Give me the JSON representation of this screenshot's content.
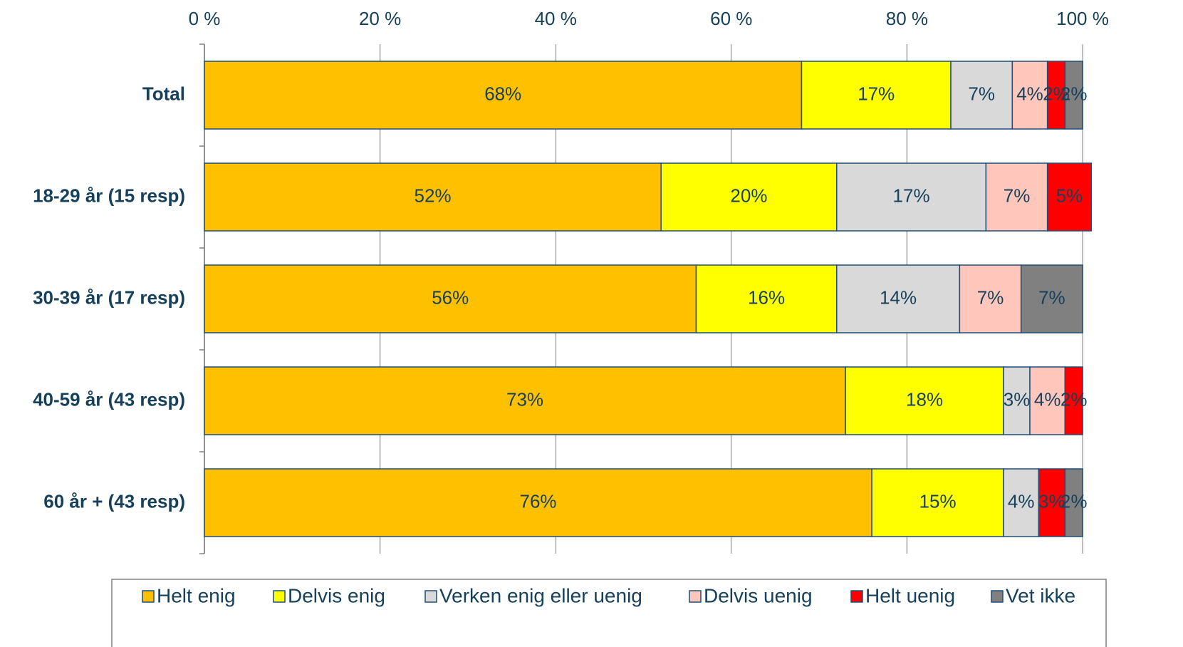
{
  "chart_data": {
    "type": "stacked-bar-horizontal",
    "categories": [
      "Total",
      "18-29 år (15 resp)",
      "30-39 år (17 resp)",
      "40-59 år (43 resp)",
      "60 år + (43 resp)"
    ],
    "series": [
      {
        "name": "Helt enig",
        "color": "#FFC000",
        "values": [
          68,
          52,
          56,
          73,
          76
        ],
        "value_labels": [
          "68%",
          "52%",
          "56%",
          "73%",
          "76%"
        ]
      },
      {
        "name": "Delvis enig",
        "color": "#FFFF00",
        "values": [
          17,
          20,
          16,
          18,
          15
        ],
        "value_labels": [
          "17%",
          "20%",
          "16%",
          "18%",
          "15%"
        ]
      },
      {
        "name": "Verken enig eller uenig",
        "color": "#D9D9D9",
        "values": [
          7,
          17,
          14,
          3,
          4
        ],
        "value_labels": [
          "7%",
          "17%",
          "14%",
          "3%",
          "4%"
        ]
      },
      {
        "name": "Delvis uenig",
        "color": "#FFC7BB",
        "values": [
          4,
          7,
          7,
          4,
          null
        ],
        "value_labels": [
          "4%",
          "7%",
          "7%",
          "4%",
          null
        ]
      },
      {
        "name": "Helt uenig",
        "color": "#FF0000",
        "values": [
          2,
          5,
          null,
          2,
          3
        ],
        "value_labels": [
          "2%",
          "5%",
          null,
          "2%",
          "3%"
        ]
      },
      {
        "name": "Vet ikke",
        "color": "#808080",
        "values": [
          2,
          null,
          7,
          null,
          2
        ],
        "value_labels": [
          "2%",
          null,
          "7%",
          null,
          "2%"
        ]
      }
    ],
    "xlim": [
      0,
      100
    ],
    "xticks": [
      {
        "value": 0,
        "label": "0 %"
      },
      {
        "value": 20,
        "label": "20 %"
      },
      {
        "value": 40,
        "label": "40 %"
      },
      {
        "value": 60,
        "label": "60 %"
      },
      {
        "value": 80,
        "label": "80 %"
      },
      {
        "value": 100,
        "label": "100 %"
      }
    ],
    "grid": true,
    "legend": "bottom"
  }
}
